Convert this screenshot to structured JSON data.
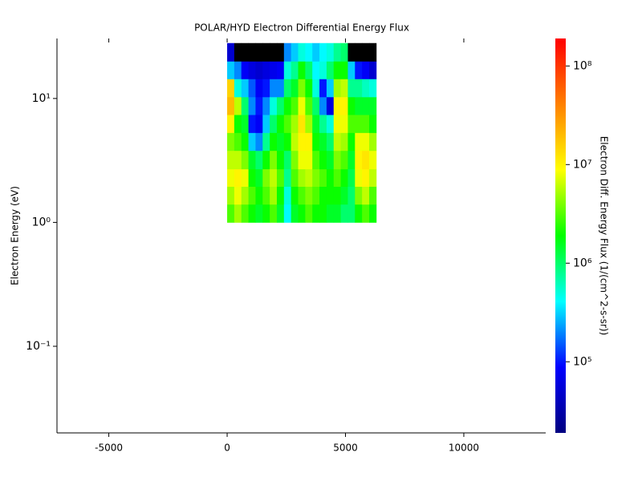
{
  "chart_data": {
    "type": "spectrogram",
    "title": "POLAR/HYD  Electron Differential Energy Flux",
    "ylabel": "Electron Energy (eV)",
    "colorbar_label": "Electron Diff. Energy Flux (1/(cm^2-s-sr))",
    "xlim": [
      -7190,
      13460
    ],
    "xticks": [
      -5000,
      0,
      5000,
      10000
    ],
    "ylim": [
      0.02,
      30.5
    ],
    "log_y": true,
    "yticks": [
      {
        "value": 0.1,
        "label": "10⁻¹"
      },
      {
        "value": 1,
        "label": "10⁰"
      },
      {
        "value": 10,
        "label": "10¹"
      }
    ],
    "clim": [
      19000,
      190000000
    ],
    "log_c": true,
    "cticks": [
      {
        "value": 100000,
        "label": "10⁵"
      },
      {
        "value": 1000000,
        "label": "10⁶"
      },
      {
        "value": 10000000,
        "label": "10⁷"
      },
      {
        "value": 100000000,
        "label": "10⁸"
      }
    ],
    "colormap": [
      "#000080",
      "#0000ff",
      "#00ffff",
      "#00ff00",
      "#ffff00",
      "#ff8000",
      "#ff0000"
    ],
    "null_color": "#000000",
    "x_edges": [
      0,
      300,
      600,
      900,
      1200,
      1500,
      1800,
      2100,
      2400,
      2700,
      3000,
      3300,
      3600,
      3900,
      4200,
      4500,
      4800,
      5100,
      5400,
      5700,
      6000,
      6300
    ],
    "y_edges": [
      1,
      1.4,
      1.95,
      2.7,
      3.8,
      5.3,
      7.4,
      10.3,
      14.4,
      20,
      28
    ],
    "values": [
      [
        3000000,
        5000000,
        8000000,
        6000000,
        4000000,
        10000000,
        20000000,
        15000000,
        300000,
        50000
      ],
      [
        5000000,
        8000000,
        10000000,
        6000000,
        3000000,
        2000000,
        6000000,
        500000,
        200000,
        null
      ],
      [
        3000000,
        5000000,
        8000000,
        4000000,
        2000000,
        1500000,
        1000000,
        300000,
        80000,
        null
      ],
      [
        2000000,
        3000000,
        2000000,
        1500000,
        300000,
        100000,
        200000,
        150000,
        60000,
        null
      ],
      [
        1500000,
        2000000,
        1500000,
        1000000,
        200000,
        80000,
        100000,
        80000,
        50000,
        null
      ],
      [
        2000000,
        3000000,
        4000000,
        2000000,
        800000,
        300000,
        200000,
        100000,
        60000,
        null
      ],
      [
        3000000,
        5000000,
        6000000,
        4000000,
        2000000,
        1000000,
        500000,
        200000,
        70000,
        null
      ],
      [
        1500000,
        2000000,
        3000000,
        2000000,
        1500000,
        2000000,
        1000000,
        200000,
        80000,
        null
      ],
      [
        400000,
        500000,
        800000,
        1000000,
        2000000,
        3000000,
        2000000,
        1000000,
        500000,
        200000
      ],
      [
        1500000,
        2000000,
        3000000,
        4000000,
        6000000,
        5000000,
        3000000,
        1500000,
        800000,
        300000
      ],
      [
        2000000,
        3000000,
        5000000,
        8000000,
        10000000,
        12000000,
        8000000,
        4000000,
        2000000,
        500000
      ],
      [
        3000000,
        4000000,
        6000000,
        8000000,
        10000000,
        5000000,
        3000000,
        2000000,
        1000000,
        400000
      ],
      [
        2000000,
        3000000,
        4000000,
        3000000,
        2000000,
        1500000,
        1000000,
        500000,
        400000,
        300000
      ],
      [
        2000000,
        2000000,
        3000000,
        2000000,
        1500000,
        800000,
        200000,
        100000,
        500000,
        400000
      ],
      [
        1500000,
        2000000,
        2000000,
        1500000,
        1000000,
        500000,
        60000,
        300000,
        1000000,
        500000
      ],
      [
        1500000,
        2000000,
        3000000,
        4000000,
        6000000,
        8000000,
        10000000,
        5000000,
        2000000,
        800000
      ],
      [
        1000000,
        1500000,
        2000000,
        3000000,
        5000000,
        8000000,
        10000000,
        6000000,
        2000000,
        1000000
      ],
      [
        1000000,
        1000000,
        1200000,
        1500000,
        2000000,
        3000000,
        2000000,
        800000,
        300000,
        null
      ],
      [
        2000000,
        4000000,
        8000000,
        10000000,
        8000000,
        3000000,
        1500000,
        800000,
        100000,
        null
      ],
      [
        3000000,
        6000000,
        10000000,
        12000000,
        8000000,
        3000000,
        1500000,
        600000,
        80000,
        null
      ],
      [
        2000000,
        3000000,
        6000000,
        8000000,
        5000000,
        2000000,
        1500000,
        500000,
        50000,
        null
      ]
    ]
  }
}
